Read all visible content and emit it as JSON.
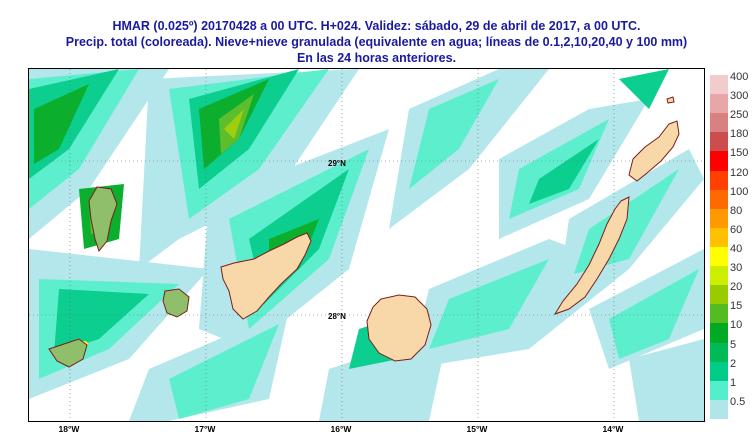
{
  "header": {
    "line1": "HMAR (0.025º) 20170428  a 00 UTC.  H+024.  Validez: sábado, 29 de abril de 2017,  a  00 UTC.",
    "line2": "Precip. total (coloreada). Nieve+nieve granulada (equivalente en agua; líneas de 0.1,2,10,20,40 y 100 mm)",
    "line3": "En las 24 horas anteriores."
  },
  "map": {
    "lat_labels": [
      "29°N",
      "28°N"
    ],
    "lon_labels": [
      "18°W",
      "17°W",
      "16°W",
      "15°W",
      "14°W"
    ],
    "land_color": "#f8d8a8",
    "coast_color": "#7a1e1e",
    "islands": [
      "la-palma",
      "el-hierro",
      "la-gomera",
      "tenerife",
      "gran-canaria",
      "fuerteventura",
      "lanzarote",
      "graciosa"
    ]
  },
  "legend": {
    "entries": [
      {
        "label": "400",
        "color": "#f2cccc"
      },
      {
        "label": "300",
        "color": "#e8a6a6"
      },
      {
        "label": "250",
        "color": "#d98080"
      },
      {
        "label": "180",
        "color": "#cc4d4d"
      },
      {
        "label": "150",
        "color": "#ff0000"
      },
      {
        "label": "120",
        "color": "#ff4000"
      },
      {
        "label": "100",
        "color": "#ff6a00"
      },
      {
        "label": "80",
        "color": "#ff9900"
      },
      {
        "label": "60",
        "color": "#ffc000"
      },
      {
        "label": "40",
        "color": "#ffff00"
      },
      {
        "label": "30",
        "color": "#ccee00"
      },
      {
        "label": "20",
        "color": "#99cc00"
      },
      {
        "label": "15",
        "color": "#55bb22"
      },
      {
        "label": "10",
        "color": "#00aa22"
      },
      {
        "label": "5",
        "color": "#00bb55"
      },
      {
        "label": "2",
        "color": "#00cc88"
      },
      {
        "label": "1",
        "color": "#55eecc"
      },
      {
        "label": "0.5",
        "color": "#b0e6ea"
      }
    ]
  }
}
